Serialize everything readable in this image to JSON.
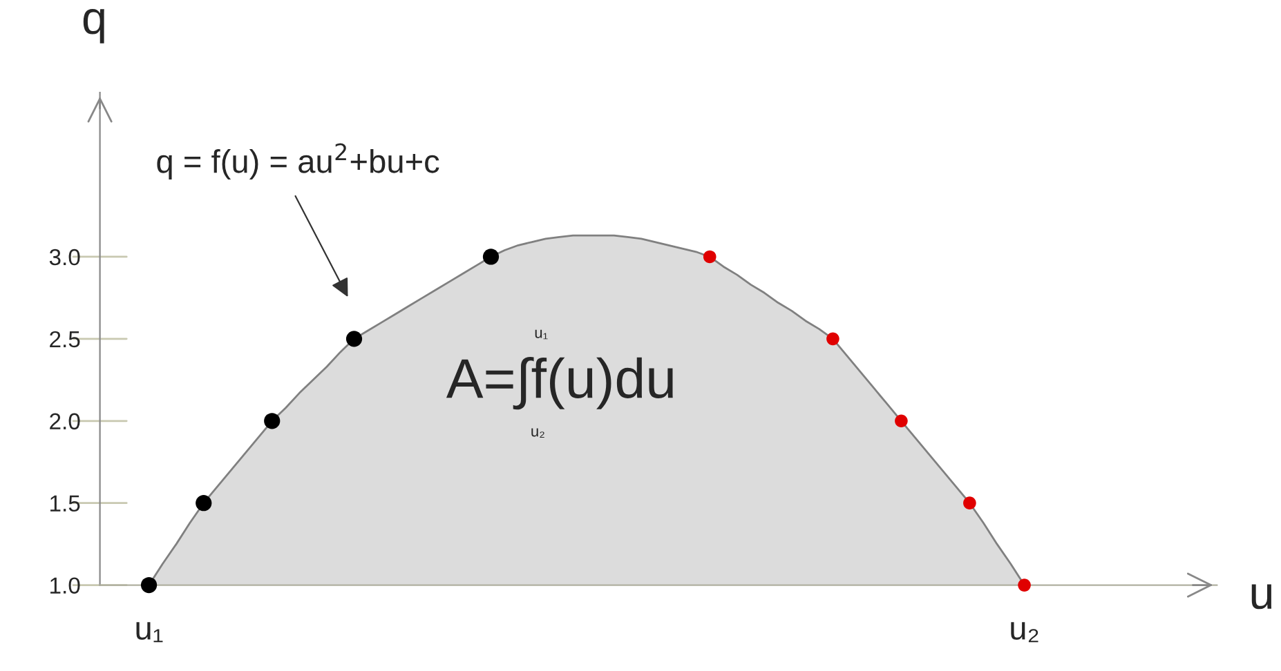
{
  "chart_data": {
    "type": "area",
    "xlabel": "u",
    "ylabel": "q",
    "categories": [
      "u₁",
      null,
      null,
      null,
      null,
      null,
      null,
      null,
      null,
      null,
      null,
      null,
      null,
      null,
      null,
      null,
      null,
      null,
      null,
      null,
      null,
      null,
      null,
      null,
      null,
      null,
      null,
      null,
      null,
      null,
      null,
      null,
      null,
      null,
      null,
      null,
      null,
      null,
      null,
      null,
      null,
      null,
      null,
      null,
      null,
      null,
      null,
      null,
      null,
      null,
      null,
      null,
      null,
      null,
      null,
      null,
      null,
      null,
      null,
      null,
      null,
      null,
      null,
      null,
      "u₂"
    ],
    "ylim": [
      1.0,
      4.0
    ],
    "yticks": [
      {
        "value": 1.0,
        "label": "1.0"
      },
      {
        "value": 1.5,
        "label": "1.5"
      },
      {
        "value": 2.0,
        "label": "2.0"
      },
      {
        "value": 2.5,
        "label": "2.5"
      },
      {
        "value": 3.0,
        "label": "3.0"
      }
    ],
    "series": [
      {
        "color": "#dcdcdc",
        "marker": "none",
        "values": [
          1.0,
          1.13,
          1.25,
          1.38,
          1.5,
          1.6,
          1.7,
          1.8,
          1.9,
          2.0,
          2.08,
          2.17,
          2.25,
          2.33,
          2.42,
          2.5,
          2.55,
          2.6,
          2.65,
          2.7,
          2.75,
          2.8,
          2.85,
          2.9,
          2.95,
          3.0,
          3.04,
          3.07,
          3.09,
          3.11,
          3.12,
          3.13,
          3.13,
          3.13,
          3.13,
          3.12,
          3.11,
          3.09,
          3.07,
          3.05,
          3.03,
          3.0,
          2.94,
          2.89,
          2.83,
          2.78,
          2.72,
          2.67,
          2.61,
          2.56,
          2.5,
          2.4,
          2.3,
          2.2,
          2.1,
          2.0,
          1.9,
          1.8,
          1.7,
          1.6,
          1.5,
          1.38,
          1.25,
          1.13,
          1.0
        ]
      },
      {
        "type": "scatter",
        "color": "#000000",
        "values": [
          1.0,
          null,
          null,
          null,
          1.5,
          null,
          null,
          null,
          null,
          2.0,
          null,
          null,
          null,
          null,
          null,
          2.5,
          null,
          null,
          null,
          null,
          null,
          null,
          null,
          null,
          null,
          3.0,
          null,
          null,
          null,
          null,
          null,
          null,
          null,
          null,
          null,
          null,
          null,
          null,
          null,
          null,
          null,
          null,
          null,
          null,
          null,
          null,
          null,
          null,
          null,
          null,
          null,
          null,
          null,
          null,
          null,
          null,
          null,
          null,
          null,
          null,
          null,
          null,
          null,
          null,
          null
        ]
      },
      {
        "type": "scatter",
        "color": "#e00000",
        "values": [
          null,
          null,
          null,
          null,
          null,
          null,
          null,
          null,
          null,
          null,
          null,
          null,
          null,
          null,
          null,
          null,
          null,
          null,
          null,
          null,
          null,
          null,
          null,
          null,
          null,
          null,
          null,
          null,
          null,
          null,
          null,
          null,
          null,
          null,
          null,
          null,
          null,
          null,
          null,
          null,
          null,
          3.0,
          null,
          null,
          null,
          null,
          null,
          null,
          null,
          null,
          2.5,
          null,
          null,
          null,
          null,
          2.0,
          null,
          null,
          null,
          null,
          1.5,
          null,
          null,
          null,
          1.0
        ]
      }
    ],
    "annotations": [
      "q = f(u) = au$^{2}$+bu+c",
      "A=∫f(u)du",
      "u₁",
      "u₂"
    ],
    "grid": false,
    "legend": false,
    "marker": "circle"
  }
}
